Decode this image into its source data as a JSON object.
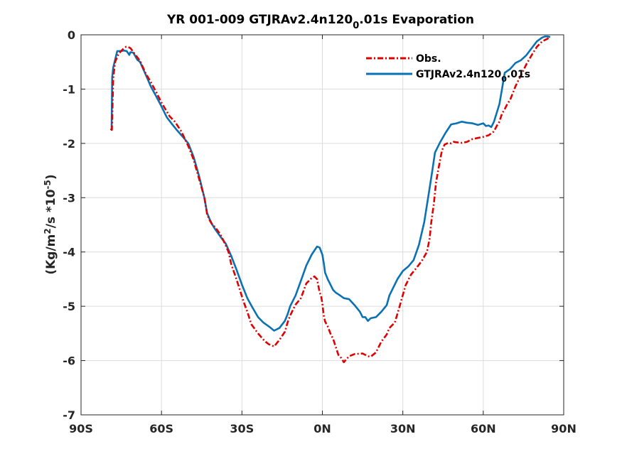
{
  "chart_data": {
    "type": "line",
    "title_main": "YR 001-009 GTJRAv2.4n120",
    "title_sub": "0",
    "title_tail": ".01s Evaporation",
    "ylabel_main": "(Kg/m",
    "ylabel_sup1": "2",
    "ylabel_mid": "/s *10",
    "ylabel_sup2": "-5",
    "ylabel_end": ")",
    "xlim": [
      -90,
      90
    ],
    "ylim": [
      -7,
      0
    ],
    "grid": true,
    "legend_position": "top-right",
    "xticks": [
      {
        "v": -90,
        "label": "90S"
      },
      {
        "v": -60,
        "label": "60S"
      },
      {
        "v": -30,
        "label": "30S"
      },
      {
        "v": 0,
        "label": "0N"
      },
      {
        "v": 30,
        "label": "30N"
      },
      {
        "v": 60,
        "label": "60N"
      },
      {
        "v": 90,
        "label": "90N"
      }
    ],
    "yticks": [
      {
        "v": 0,
        "label": "0"
      },
      {
        "v": -1,
        "label": "-1"
      },
      {
        "v": -2,
        "label": "-2"
      },
      {
        "v": -3,
        "label": "-3"
      },
      {
        "v": -4,
        "label": "-4"
      },
      {
        "v": -5,
        "label": "-5"
      },
      {
        "v": -6,
        "label": "-6"
      },
      {
        "v": -7,
        "label": "-7"
      }
    ],
    "series": [
      {
        "name": "Obs.",
        "color": "#e00000",
        "dash": "8,3,2,3",
        "x": [
          -78.7,
          -78.5,
          -78,
          -77.3,
          -76,
          -74.5,
          -73.2,
          -72.5,
          -71.5,
          -70,
          -68,
          -66,
          -64,
          -62,
          -60,
          -58.4,
          -57,
          -55,
          -52.6,
          -50,
          -48,
          -46,
          -44,
          -43,
          -42,
          -41,
          -40,
          -38,
          -36.5,
          -35,
          -34,
          -32.6,
          -31,
          -29.5,
          -28,
          -26.5,
          -24,
          -21.5,
          -20,
          -18,
          -16,
          -14,
          -13,
          -12,
          -10,
          -8,
          -6,
          -4,
          -3,
          -2,
          -1,
          -0.5,
          0,
          0.5,
          1,
          2,
          3,
          4,
          5,
          6,
          7,
          8,
          9,
          10,
          12,
          15,
          17,
          18,
          20,
          22,
          24,
          25,
          27,
          29,
          31,
          33,
          35,
          37,
          39,
          40,
          40.6,
          41.6,
          42.4,
          43.4,
          44.6,
          45.6,
          47,
          48,
          49,
          50,
          52,
          54,
          56,
          58,
          60,
          62,
          64,
          65,
          66,
          67,
          68,
          69,
          70,
          72,
          74,
          76,
          78,
          80,
          82,
          84,
          85
        ],
        "y": [
          -1.73,
          -1.75,
          -0.8,
          -0.5,
          -0.35,
          -0.27,
          -0.22,
          -0.22,
          -0.25,
          -0.35,
          -0.48,
          -0.7,
          -0.87,
          -1.05,
          -1.25,
          -1.38,
          -1.5,
          -1.6,
          -1.78,
          -2.05,
          -2.3,
          -2.65,
          -3.0,
          -3.3,
          -3.42,
          -3.5,
          -3.54,
          -3.68,
          -3.83,
          -4.0,
          -4.22,
          -4.42,
          -4.66,
          -4.9,
          -5.1,
          -5.33,
          -5.5,
          -5.64,
          -5.7,
          -5.74,
          -5.62,
          -5.47,
          -5.3,
          -5.17,
          -4.97,
          -4.85,
          -4.58,
          -4.48,
          -4.45,
          -4.5,
          -4.75,
          -4.8,
          -4.95,
          -5.17,
          -5.28,
          -5.37,
          -5.5,
          -5.6,
          -5.75,
          -5.9,
          -5.95,
          -6.03,
          -5.97,
          -5.92,
          -5.88,
          -5.87,
          -5.92,
          -5.93,
          -5.85,
          -5.65,
          -5.52,
          -5.4,
          -5.3,
          -4.97,
          -4.62,
          -4.42,
          -4.3,
          -4.17,
          -4.0,
          -3.75,
          -3.45,
          -3.1,
          -2.72,
          -2.44,
          -2.13,
          -2.02,
          -1.99,
          -2.0,
          -1.97,
          -1.98,
          -1.99,
          -1.97,
          -1.92,
          -1.9,
          -1.88,
          -1.85,
          -1.78,
          -1.68,
          -1.6,
          -1.45,
          -1.37,
          -1.27,
          -1.2,
          -0.95,
          -0.75,
          -0.55,
          -0.38,
          -0.22,
          -0.12,
          -0.07,
          -0.04
        ]
      },
      {
        "name": "GTJRAv2.4n120",
        "name_sub": "0",
        "name_tail": ".01s",
        "color": "#0a72b4",
        "dash": "",
        "x": [
          -79,
          -78.6,
          -78.4,
          -78,
          -76.5,
          -75.5,
          -74,
          -73,
          -72,
          -71.6,
          -70.5,
          -69,
          -68,
          -66,
          -64,
          -62,
          -60,
          -58,
          -56,
          -54,
          -52,
          -50,
          -48,
          -46,
          -44,
          -43,
          -42,
          -41,
          -40,
          -38,
          -36,
          -34,
          -32,
          -30,
          -28,
          -26,
          -24,
          -22,
          -20,
          -18,
          -16,
          -14,
          -13,
          -12,
          -10,
          -8,
          -6,
          -4,
          -2,
          -1,
          0,
          0.5,
          1,
          2,
          3,
          4,
          5,
          6,
          8,
          10,
          12,
          14,
          15,
          16,
          17,
          18,
          20,
          22,
          24,
          25,
          26,
          28,
          30,
          32,
          34,
          36,
          38,
          40,
          41,
          42,
          44,
          46,
          48,
          50,
          52,
          54,
          56,
          58,
          60,
          61,
          62,
          63,
          64,
          66,
          67,
          68,
          70,
          72,
          74,
          76,
          78,
          80,
          82,
          83,
          84,
          85
        ],
        "y": [
          -1.73,
          -1.75,
          -0.78,
          -0.6,
          -0.3,
          -0.3,
          -0.29,
          -0.3,
          -0.37,
          -0.32,
          -0.33,
          -0.46,
          -0.5,
          -0.72,
          -0.95,
          -1.13,
          -1.32,
          -1.52,
          -1.65,
          -1.77,
          -1.88,
          -2.0,
          -2.25,
          -2.6,
          -3.0,
          -3.28,
          -3.4,
          -3.5,
          -3.58,
          -3.72,
          -3.85,
          -4.07,
          -4.33,
          -4.6,
          -4.85,
          -5.03,
          -5.2,
          -5.3,
          -5.37,
          -5.45,
          -5.4,
          -5.27,
          -5.15,
          -5.0,
          -4.8,
          -4.53,
          -4.25,
          -4.05,
          -3.9,
          -3.92,
          -4.05,
          -4.2,
          -4.38,
          -4.5,
          -4.6,
          -4.7,
          -4.75,
          -4.78,
          -4.85,
          -4.87,
          -4.98,
          -5.1,
          -5.2,
          -5.2,
          -5.27,
          -5.22,
          -5.2,
          -5.1,
          -4.98,
          -4.8,
          -4.7,
          -4.5,
          -4.35,
          -4.27,
          -4.15,
          -3.87,
          -3.45,
          -2.82,
          -2.5,
          -2.17,
          -1.97,
          -1.8,
          -1.65,
          -1.63,
          -1.6,
          -1.62,
          -1.63,
          -1.66,
          -1.63,
          -1.68,
          -1.67,
          -1.7,
          -1.6,
          -1.28,
          -1.0,
          -0.7,
          -0.63,
          -0.52,
          -0.47,
          -0.38,
          -0.25,
          -0.12,
          -0.05,
          -0.03,
          -0.03,
          -0.04
        ]
      }
    ]
  }
}
